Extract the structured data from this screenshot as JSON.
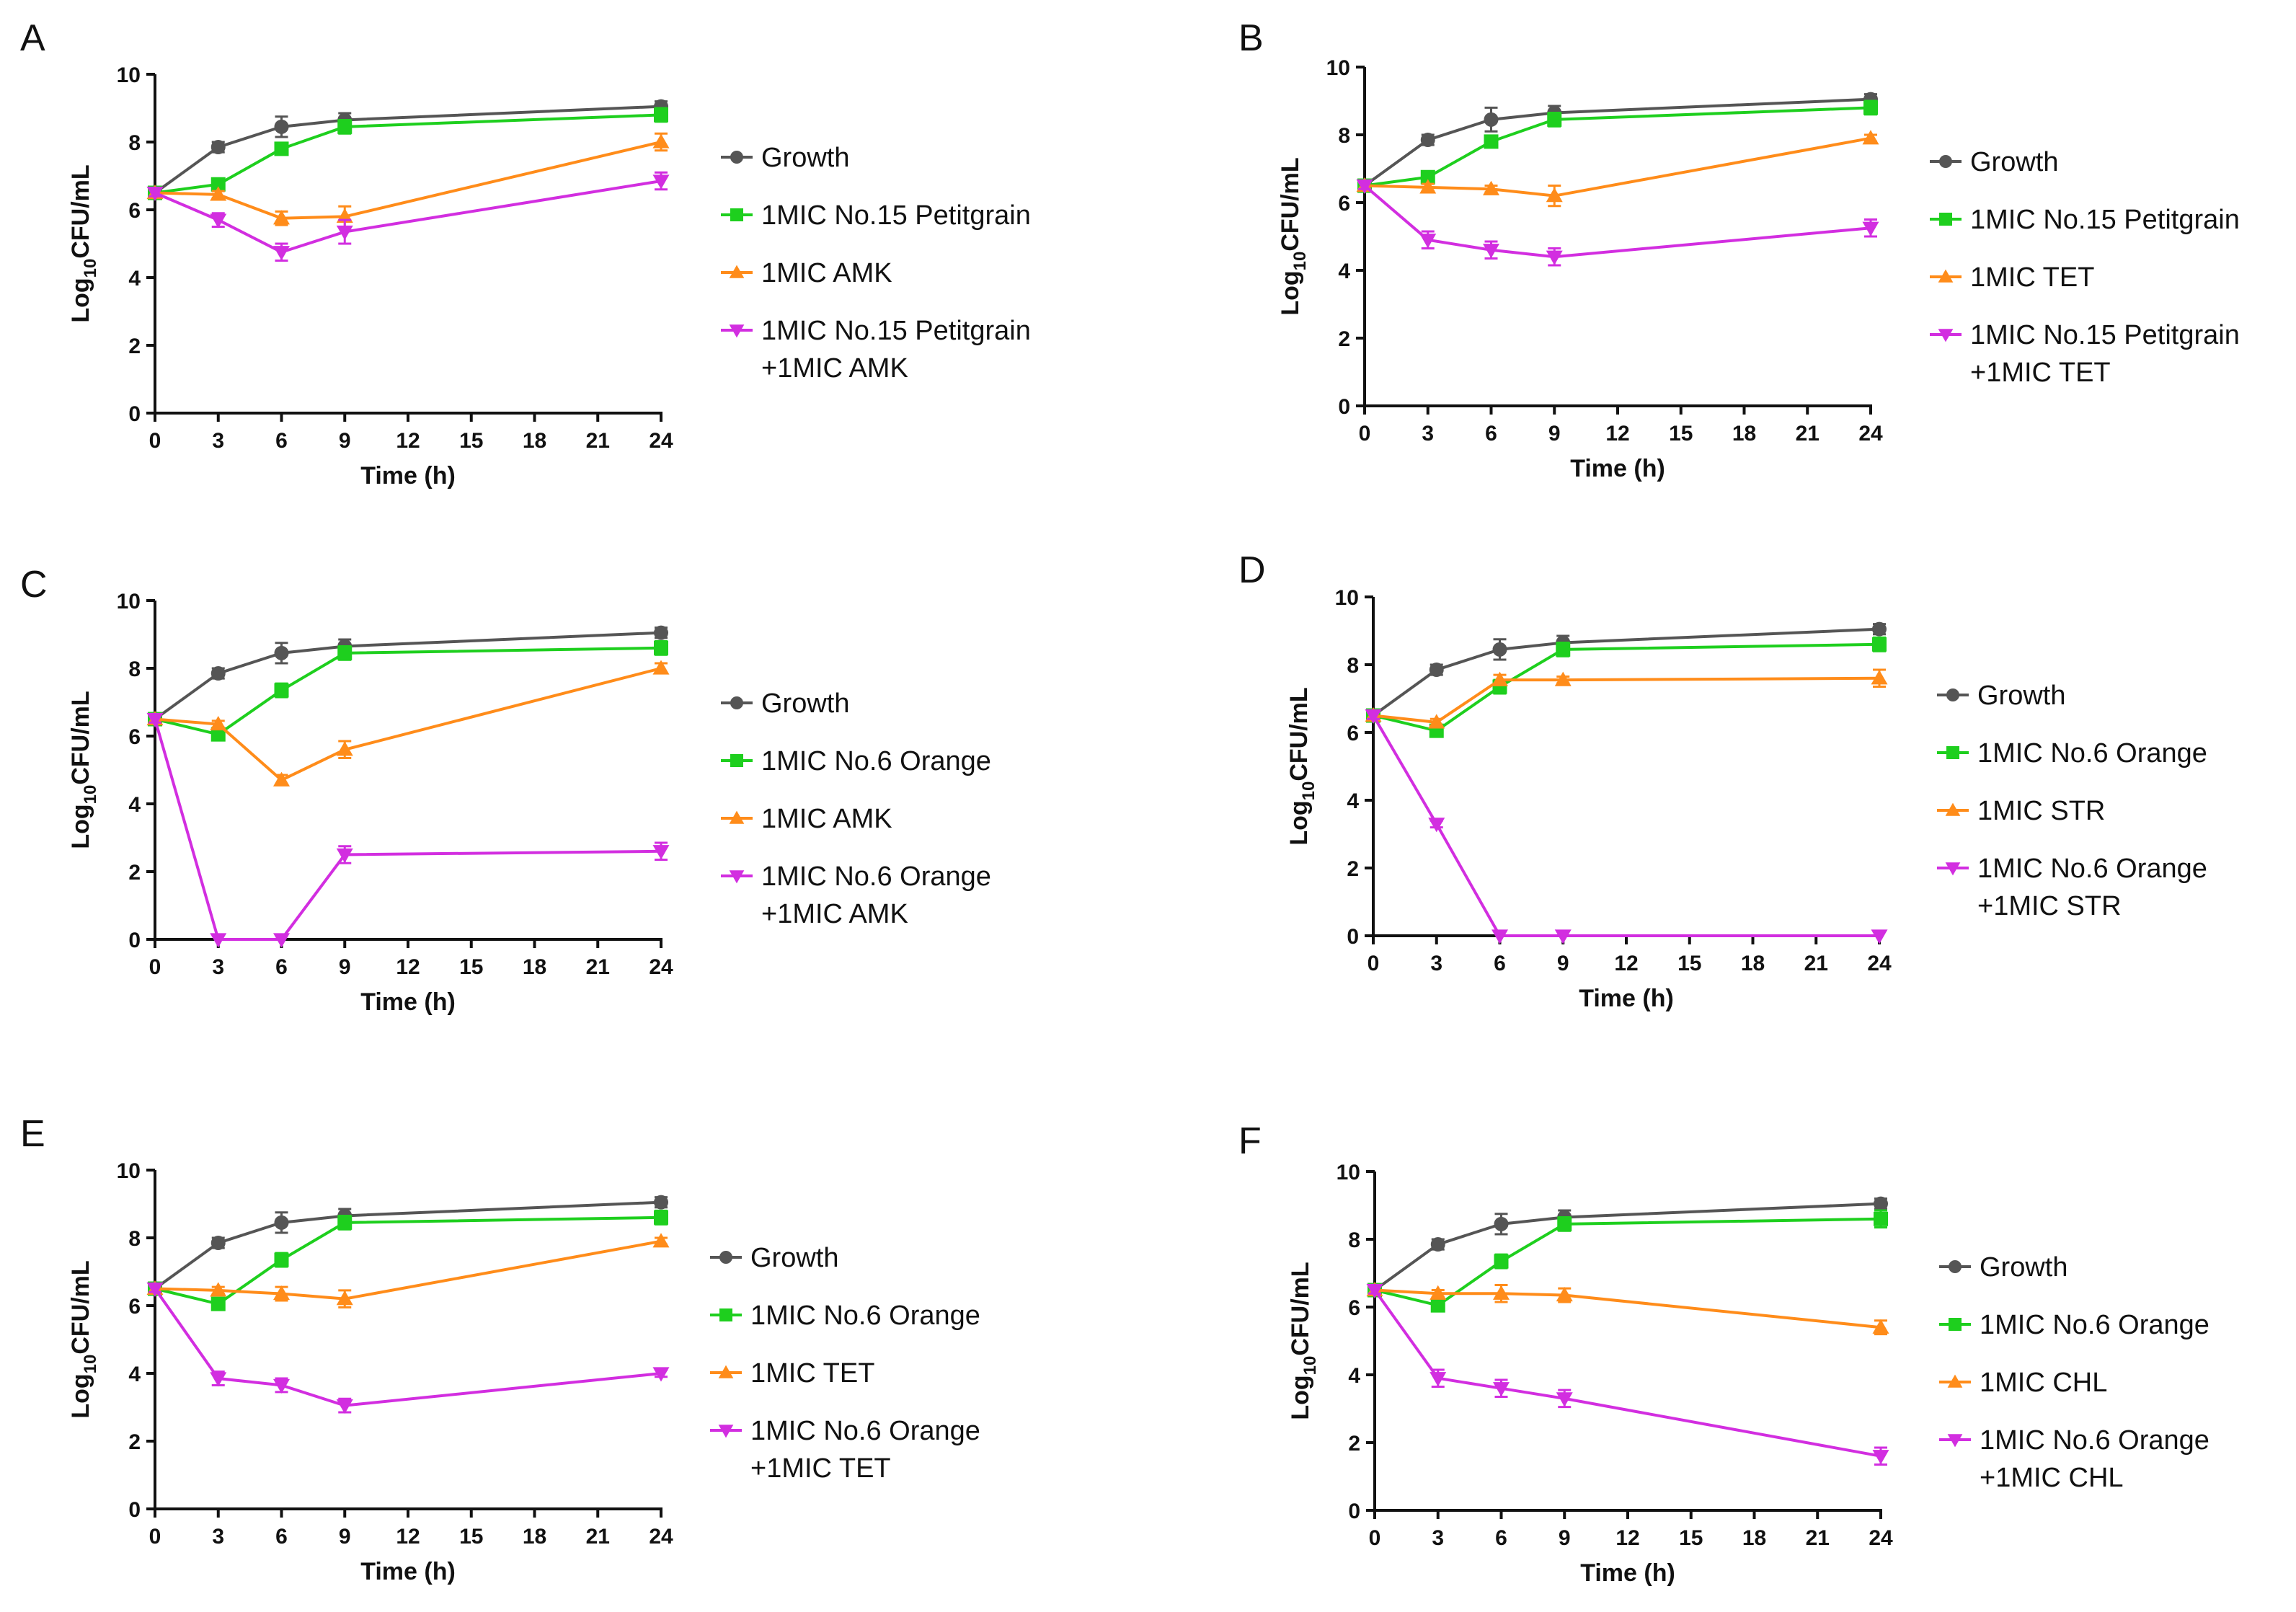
{
  "figure": {
    "description_type": "time-kill curves"
  },
  "colors": {
    "growth": "#555555",
    "oil": "#1ecf1e",
    "antibiotic": "#ff8c1a",
    "combination": "#d22ee0",
    "axis": "#111111"
  },
  "chart_data": [
    {
      "panel": "A",
      "type": "line",
      "xlabel": "Time (h)",
      "ylabel_main": "Log",
      "ylabel_sub": "10",
      "ylabel_tail": "CFU/mL",
      "xticks": [
        0,
        3,
        6,
        9,
        12,
        15,
        18,
        21,
        24
      ],
      "yticks": [
        0,
        2,
        4,
        6,
        8,
        10
      ],
      "xlim": [
        0,
        24
      ],
      "ylim": [
        0,
        10
      ],
      "x": [
        0,
        3,
        6,
        9,
        24
      ],
      "series": [
        {
          "name": "Growth",
          "label": [
            "Growth"
          ],
          "marker": "circle",
          "color": "#555555",
          "values": [
            6.5,
            7.85,
            8.45,
            8.65,
            9.05
          ],
          "err": [
            0.1,
            0.15,
            0.3,
            0.2,
            0.15
          ]
        },
        {
          "name": "1MIC No.15 Petitgrain",
          "label": [
            "1MIC No.15 Petitgrain"
          ],
          "marker": "square",
          "color": "#1ecf1e",
          "values": [
            6.5,
            6.75,
            7.8,
            8.45,
            8.8
          ],
          "err": [
            0.1,
            0.1,
            0.15,
            0.2,
            0.2
          ]
        },
        {
          "name": "1MIC AMK",
          "label": [
            "1MIC AMK"
          ],
          "marker": "triangle-up",
          "color": "#ff8c1a",
          "values": [
            6.5,
            6.45,
            5.75,
            5.8,
            8.0
          ],
          "err": [
            0.1,
            0.1,
            0.2,
            0.3,
            0.25
          ]
        },
        {
          "name": "1MIC No.15 Petitgrain +1MIC AMK",
          "label": [
            "1MIC No.15 Petitgrain",
            "+1MIC AMK"
          ],
          "marker": "triangle-down",
          "color": "#d22ee0",
          "values": [
            6.5,
            5.7,
            4.75,
            5.35,
            6.85
          ],
          "err": [
            0.1,
            0.2,
            0.25,
            0.35,
            0.25
          ]
        }
      ]
    },
    {
      "panel": "B",
      "type": "line",
      "xlabel": "Time (h)",
      "ylabel_main": "Log",
      "ylabel_sub": "10",
      "ylabel_tail": "CFU/mL",
      "xticks": [
        0,
        3,
        6,
        9,
        12,
        15,
        18,
        21,
        24
      ],
      "yticks": [
        0,
        2,
        4,
        6,
        8,
        10
      ],
      "xlim": [
        0,
        24
      ],
      "ylim": [
        0,
        10
      ],
      "x": [
        0,
        3,
        6,
        9,
        24
      ],
      "series": [
        {
          "name": "Growth",
          "label": [
            "Growth"
          ],
          "marker": "circle",
          "color": "#555555",
          "values": [
            6.5,
            7.85,
            8.45,
            8.65,
            9.05
          ],
          "err": [
            0.1,
            0.15,
            0.35,
            0.2,
            0.15
          ]
        },
        {
          "name": "1MIC No.15 Petitgrain",
          "label": [
            "1MIC No.15 Petitgrain"
          ],
          "marker": "square",
          "color": "#1ecf1e",
          "values": [
            6.5,
            6.75,
            7.8,
            8.45,
            8.8
          ],
          "err": [
            0.1,
            0.1,
            0.15,
            0.2,
            0.2
          ]
        },
        {
          "name": "1MIC TET",
          "label": [
            "1MIC TET"
          ],
          "marker": "triangle-up",
          "color": "#ff8c1a",
          "values": [
            6.5,
            6.45,
            6.4,
            6.2,
            7.9
          ],
          "err": [
            0.1,
            0.1,
            0.1,
            0.3,
            0.1
          ]
        },
        {
          "name": "1MIC No.15 Petitgrain +1MIC TET",
          "label": [
            "1MIC No.15 Petitgrain",
            "+1MIC TET"
          ],
          "marker": "triangle-down",
          "color": "#d22ee0",
          "values": [
            6.5,
            4.9,
            4.6,
            4.4,
            5.25
          ],
          "err": [
            0.1,
            0.25,
            0.25,
            0.25,
            0.25
          ]
        }
      ]
    },
    {
      "panel": "C",
      "type": "line",
      "xlabel": "Time (h)",
      "ylabel_main": "Log",
      "ylabel_sub": "10",
      "ylabel_tail": "CFU/mL",
      "xticks": [
        0,
        3,
        6,
        9,
        12,
        15,
        18,
        21,
        24
      ],
      "yticks": [
        0,
        2,
        4,
        6,
        8,
        10
      ],
      "xlim": [
        0,
        24
      ],
      "ylim": [
        0,
        10
      ],
      "x": [
        0,
        3,
        6,
        9,
        24
      ],
      "series": [
        {
          "name": "Growth",
          "label": [
            "Growth"
          ],
          "marker": "circle",
          "color": "#555555",
          "values": [
            6.5,
            7.85,
            8.45,
            8.65,
            9.05
          ],
          "err": [
            0.1,
            0.15,
            0.3,
            0.2,
            0.15
          ]
        },
        {
          "name": "1MIC No.6 Orange",
          "label": [
            "1MIC No.6 Orange"
          ],
          "marker": "square",
          "color": "#1ecf1e",
          "values": [
            6.5,
            6.05,
            7.35,
            8.45,
            8.6
          ],
          "err": [
            0.1,
            0.1,
            0.2,
            0.2,
            0.2
          ]
        },
        {
          "name": "1MIC AMK",
          "label": [
            "1MIC AMK"
          ],
          "marker": "triangle-up",
          "color": "#ff8c1a",
          "values": [
            6.5,
            6.35,
            4.7,
            5.6,
            8.0
          ],
          "err": [
            0.1,
            0.1,
            0.15,
            0.25,
            0.15
          ]
        },
        {
          "name": "1MIC No.6 Orange +1MIC AMK",
          "label": [
            "1MIC No.6 Orange",
            "+1MIC AMK"
          ],
          "marker": "triangle-down",
          "color": "#d22ee0",
          "values": [
            6.5,
            0.0,
            0.0,
            2.5,
            2.6
          ],
          "err": [
            0.1,
            0.0,
            0.0,
            0.25,
            0.25
          ]
        }
      ]
    },
    {
      "panel": "D",
      "type": "line",
      "xlabel": "Time (h)",
      "ylabel_main": "Log",
      "ylabel_sub": "10",
      "ylabel_tail": "CFU/mL",
      "xticks": [
        0,
        3,
        6,
        9,
        12,
        15,
        18,
        21,
        24
      ],
      "yticks": [
        0,
        2,
        4,
        6,
        8,
        10
      ],
      "xlim": [
        0,
        24
      ],
      "ylim": [
        0,
        10
      ],
      "x": [
        0,
        3,
        6,
        9,
        24
      ],
      "series": [
        {
          "name": "Growth",
          "label": [
            "Growth"
          ],
          "marker": "circle",
          "color": "#555555",
          "values": [
            6.5,
            7.85,
            8.45,
            8.65,
            9.05
          ],
          "err": [
            0.1,
            0.15,
            0.3,
            0.2,
            0.15
          ]
        },
        {
          "name": "1MIC No.6 Orange",
          "label": [
            "1MIC No.6 Orange"
          ],
          "marker": "square",
          "color": "#1ecf1e",
          "values": [
            6.5,
            6.05,
            7.35,
            8.45,
            8.6
          ],
          "err": [
            0.1,
            0.1,
            0.2,
            0.2,
            0.2
          ]
        },
        {
          "name": "1MIC STR",
          "label": [
            "1MIC STR"
          ],
          "marker": "triangle-up",
          "color": "#ff8c1a",
          "values": [
            6.5,
            6.3,
            7.55,
            7.55,
            7.6
          ],
          "err": [
            0.1,
            0.1,
            0.15,
            0.1,
            0.25
          ]
        },
        {
          "name": "1MIC No.6 Orange +1MIC STR",
          "label": [
            "1MIC No.6 Orange",
            "+1MIC STR"
          ],
          "marker": "triangle-down",
          "color": "#d22ee0",
          "values": [
            6.5,
            3.3,
            0.0,
            0.0,
            0.0
          ],
          "err": [
            0.1,
            0.1,
            0.0,
            0.0,
            0.0
          ]
        }
      ]
    },
    {
      "panel": "E",
      "type": "line",
      "xlabel": "Time (h)",
      "ylabel_main": "Log",
      "ylabel_sub": "10",
      "ylabel_tail": "CFU/mL",
      "xticks": [
        0,
        3,
        6,
        9,
        12,
        15,
        18,
        21,
        24
      ],
      "yticks": [
        0,
        2,
        4,
        6,
        8,
        10
      ],
      "xlim": [
        0,
        24
      ],
      "ylim": [
        0,
        10
      ],
      "x": [
        0,
        3,
        6,
        9,
        24
      ],
      "series": [
        {
          "name": "Growth",
          "label": [
            "Growth"
          ],
          "marker": "circle",
          "color": "#555555",
          "values": [
            6.5,
            7.85,
            8.45,
            8.65,
            9.05
          ],
          "err": [
            0.1,
            0.15,
            0.3,
            0.2,
            0.15
          ]
        },
        {
          "name": "1MIC No.6 Orange",
          "label": [
            "1MIC No.6 Orange"
          ],
          "marker": "square",
          "color": "#1ecf1e",
          "values": [
            6.5,
            6.05,
            7.35,
            8.45,
            8.6
          ],
          "err": [
            0.1,
            0.1,
            0.2,
            0.2,
            0.2
          ]
        },
        {
          "name": "1MIC TET",
          "label": [
            "1MIC TET"
          ],
          "marker": "triangle-up",
          "color": "#ff8c1a",
          "values": [
            6.5,
            6.45,
            6.35,
            6.2,
            7.9
          ],
          "err": [
            0.1,
            0.1,
            0.2,
            0.25,
            0.1
          ]
        },
        {
          "name": "1MIC No.6 Orange +1MIC TET",
          "label": [
            "1MIC No.6 Orange",
            "+1MIC TET"
          ],
          "marker": "triangle-down",
          "color": "#d22ee0",
          "values": [
            6.5,
            3.85,
            3.65,
            3.05,
            4.0
          ],
          "err": [
            0.1,
            0.2,
            0.2,
            0.2,
            0.1
          ]
        }
      ]
    },
    {
      "panel": "F",
      "type": "line",
      "xlabel": "Time (h)",
      "ylabel_main": "Log",
      "ylabel_sub": "10",
      "ylabel_tail": "CFU/mL",
      "xticks": [
        0,
        3,
        6,
        9,
        12,
        15,
        18,
        21,
        24
      ],
      "yticks": [
        0,
        2,
        4,
        6,
        8,
        10
      ],
      "xlim": [
        0,
        24
      ],
      "ylim": [
        0,
        10
      ],
      "x": [
        0,
        3,
        6,
        9,
        24
      ],
      "series": [
        {
          "name": "Growth",
          "label": [
            "Growth"
          ],
          "marker": "circle",
          "color": "#555555",
          "values": [
            6.5,
            7.85,
            8.45,
            8.65,
            9.05
          ],
          "err": [
            0.1,
            0.15,
            0.3,
            0.2,
            0.15
          ]
        },
        {
          "name": "1MIC No.6 Orange",
          "label": [
            "1MIC No.6 Orange"
          ],
          "marker": "square",
          "color": "#1ecf1e",
          "values": [
            6.5,
            6.05,
            7.35,
            8.45,
            8.6
          ],
          "err": [
            0.1,
            0.1,
            0.2,
            0.2,
            0.25
          ]
        },
        {
          "name": "1MIC CHL",
          "label": [
            "1MIC CHL"
          ],
          "marker": "triangle-up",
          "color": "#ff8c1a",
          "values": [
            6.5,
            6.4,
            6.4,
            6.35,
            5.4
          ],
          "err": [
            0.1,
            0.1,
            0.25,
            0.2,
            0.2
          ]
        },
        {
          "name": "1MIC No.6 Orange +1MIC CHL",
          "label": [
            "1MIC No.6 Orange",
            "+1MIC CHL"
          ],
          "marker": "triangle-down",
          "color": "#d22ee0",
          "values": [
            6.5,
            3.9,
            3.6,
            3.3,
            1.6
          ],
          "err": [
            0.1,
            0.25,
            0.25,
            0.25,
            0.25
          ]
        }
      ]
    }
  ]
}
